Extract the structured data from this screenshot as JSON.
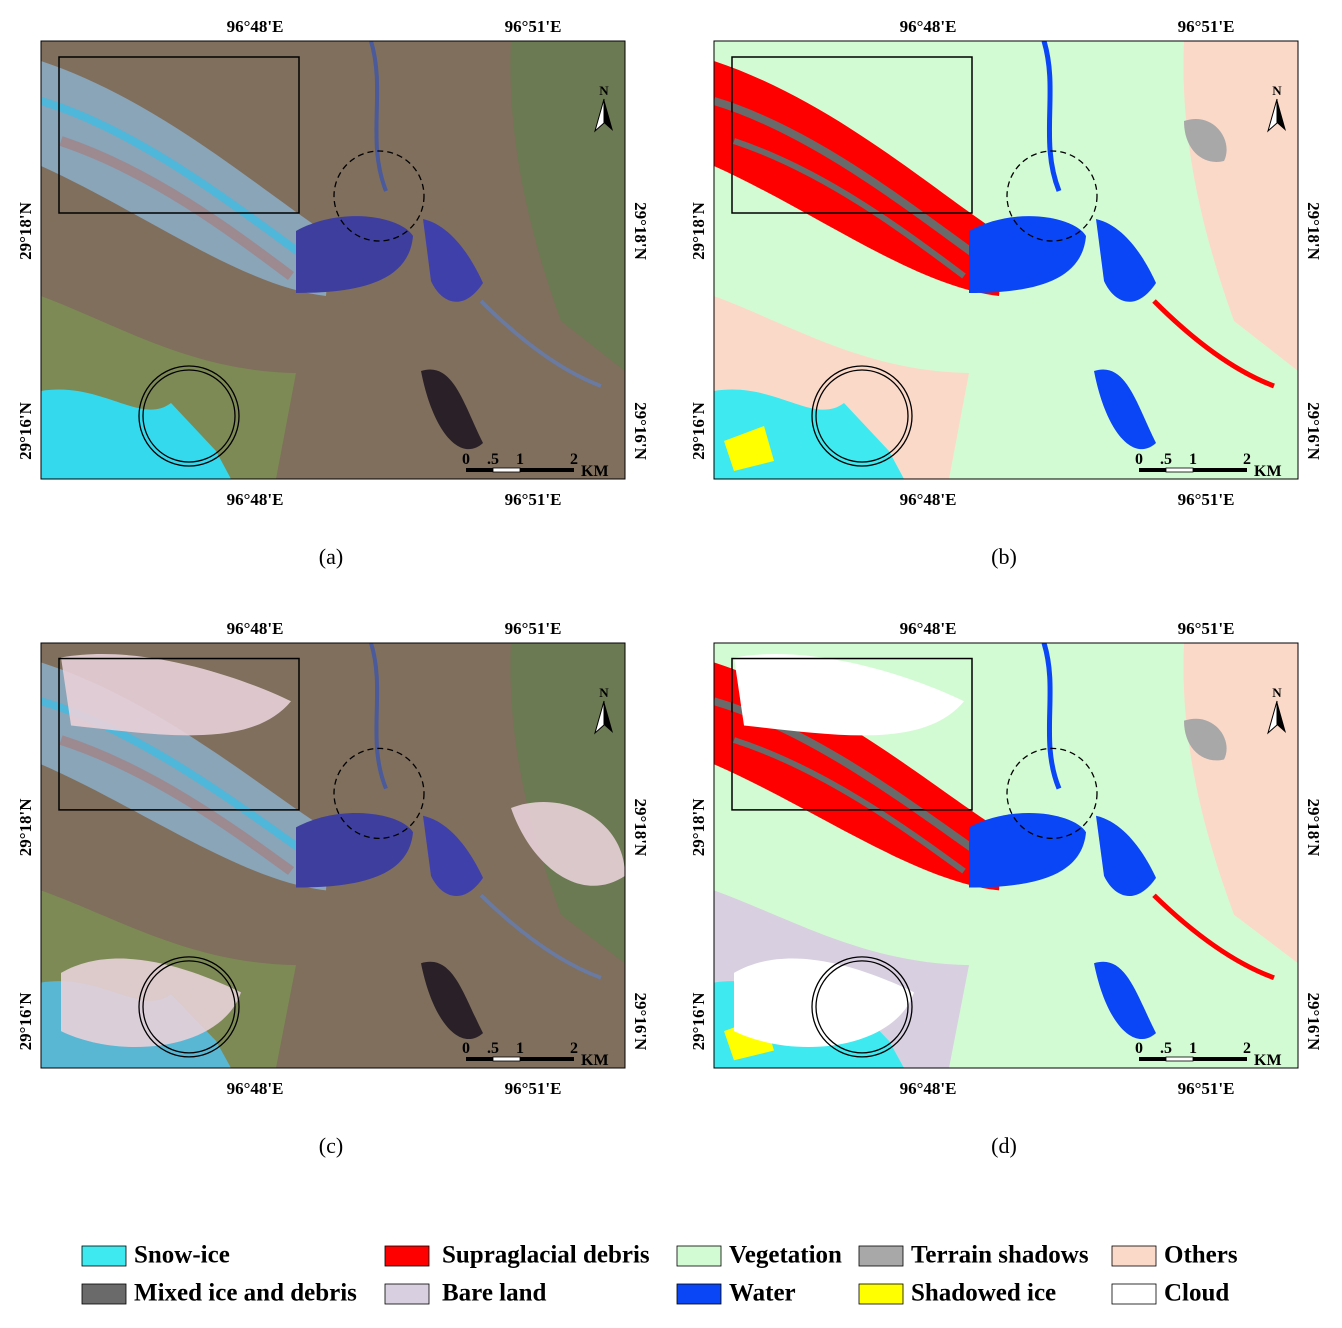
{
  "panels": [
    {
      "caption": "(a)"
    },
    {
      "caption": "(b)"
    },
    {
      "caption": "(c)"
    },
    {
      "caption": "(d)"
    }
  ],
  "longitude_labels": [
    "96°48'E",
    "96°51'E"
  ],
  "latitude_labels": [
    "29°18'N",
    "29°16'N"
  ],
  "scale_bar": {
    "ticks": [
      "0",
      ".5",
      "1",
      "2"
    ],
    "unit": "KM"
  },
  "north_label": "N",
  "legend": [
    {
      "name": "Snow-ice",
      "color": "#3ee9ef"
    },
    {
      "name": "Supraglacial debris",
      "color": "#ff0000"
    },
    {
      "name": "Vegetation",
      "color": "#d3fbd3"
    },
    {
      "name": "Terrain shadows",
      "color": "#a8a8a8"
    },
    {
      "name": "Others",
      "color": "#fbd9c8"
    },
    {
      "name": "Mixed ice and debris",
      "color": "#6a6a6a"
    },
    {
      "name": "Bare land",
      "color": "#d8cfe0"
    },
    {
      "name": "Water",
      "color": "#0a46f5"
    },
    {
      "name": "Shadowed ice",
      "color": "#ffff00"
    },
    {
      "name": "Cloud",
      "color": "#ffffff"
    }
  ]
}
